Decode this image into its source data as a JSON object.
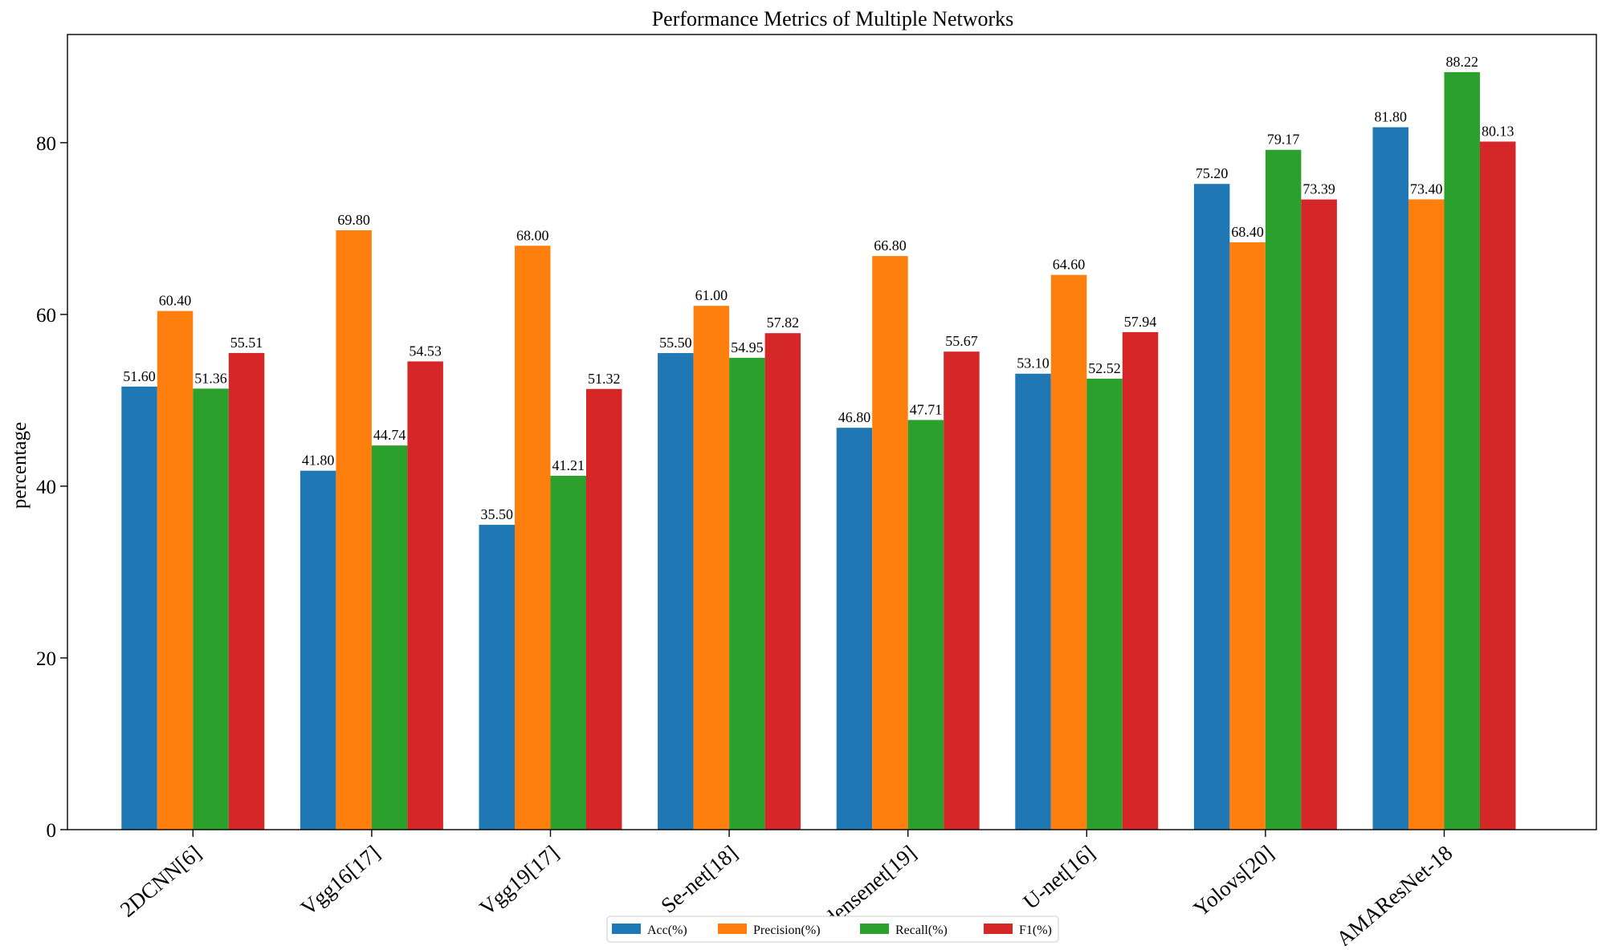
{
  "chart_data": {
    "type": "bar",
    "title": "Performance Metrics of Multiple Networks",
    "xlabel": "",
    "ylabel": "percentage",
    "ylim": [
      0,
      92.6
    ],
    "yticks": [
      "0",
      "20",
      "40",
      "60",
      "80"
    ],
    "grid": false,
    "legend_position": "bottom-center",
    "categories": [
      "2DCNN[6]",
      "Vgg16[17]",
      "Vgg19[17]",
      "Se-net[18]",
      "densenet[19]",
      "U-net[16]",
      "Yolovs[20]",
      "AMAResNet-18"
    ],
    "series": [
      {
        "name": "Acc(%)",
        "color": "#1f77b4",
        "values": [
          51.6,
          41.8,
          35.5,
          55.5,
          46.8,
          53.1,
          75.2,
          81.8
        ],
        "labels": [
          "51.60",
          "41.80",
          "35.50",
          "55.50",
          "46.80",
          "53.10",
          "75.20",
          "81.80"
        ]
      },
      {
        "name": "Precision(%)",
        "color": "#ff7f0e",
        "values": [
          60.4,
          69.8,
          68.0,
          61.0,
          66.8,
          64.6,
          68.4,
          73.4
        ],
        "labels": [
          "60.40",
          "69.80",
          "68.00",
          "61.00",
          "66.80",
          "64.60",
          "68.40",
          "73.40"
        ]
      },
      {
        "name": "Recall(%)",
        "color": "#2ca02c",
        "values": [
          51.36,
          44.74,
          41.21,
          54.95,
          47.71,
          52.52,
          79.17,
          88.22
        ],
        "labels": [
          "51.36",
          "44.74",
          "41.21",
          "54.95",
          "47.71",
          "52.52",
          "79.17",
          "88.22"
        ]
      },
      {
        "name": "F1(%)",
        "color": "#d62728",
        "values": [
          55.51,
          54.53,
          51.32,
          57.82,
          55.67,
          57.94,
          73.39,
          80.13
        ],
        "labels": [
          "55.51",
          "54.53",
          "51.32",
          "57.82",
          "55.67",
          "57.94",
          "73.39",
          "80.13"
        ]
      }
    ]
  }
}
